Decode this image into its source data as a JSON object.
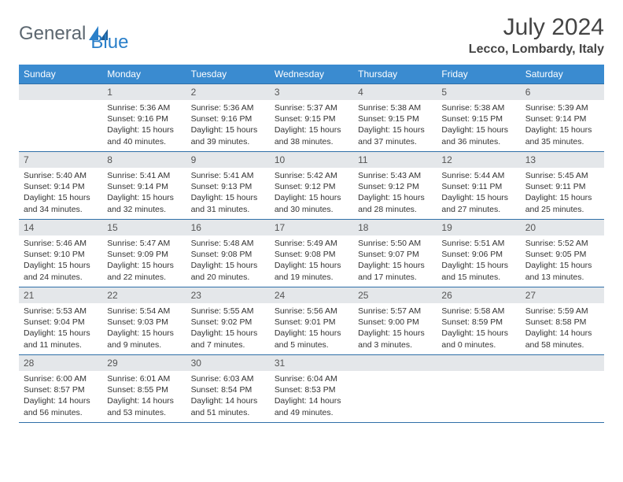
{
  "logo": {
    "text1": "General",
    "text2": "Blue"
  },
  "header": {
    "title": "July 2024",
    "location": "Lecco, Lombardy, Italy"
  },
  "colors": {
    "header_bg": "#3a8bd0",
    "header_text": "#ffffff",
    "daynum_bg": "#e4e7ea",
    "rule": "#2f6fa8",
    "logo_gray": "#5c6770",
    "logo_blue": "#2a7fc9",
    "body_text": "#333333"
  },
  "weekdays": [
    "Sunday",
    "Monday",
    "Tuesday",
    "Wednesday",
    "Thursday",
    "Friday",
    "Saturday"
  ],
  "weeks": [
    [
      {
        "n": "",
        "lines": []
      },
      {
        "n": "1",
        "lines": [
          "Sunrise: 5:36 AM",
          "Sunset: 9:16 PM",
          "Daylight: 15 hours and 40 minutes."
        ]
      },
      {
        "n": "2",
        "lines": [
          "Sunrise: 5:36 AM",
          "Sunset: 9:16 PM",
          "Daylight: 15 hours and 39 minutes."
        ]
      },
      {
        "n": "3",
        "lines": [
          "Sunrise: 5:37 AM",
          "Sunset: 9:15 PM",
          "Daylight: 15 hours and 38 minutes."
        ]
      },
      {
        "n": "4",
        "lines": [
          "Sunrise: 5:38 AM",
          "Sunset: 9:15 PM",
          "Daylight: 15 hours and 37 minutes."
        ]
      },
      {
        "n": "5",
        "lines": [
          "Sunrise: 5:38 AM",
          "Sunset: 9:15 PM",
          "Daylight: 15 hours and 36 minutes."
        ]
      },
      {
        "n": "6",
        "lines": [
          "Sunrise: 5:39 AM",
          "Sunset: 9:14 PM",
          "Daylight: 15 hours and 35 minutes."
        ]
      }
    ],
    [
      {
        "n": "7",
        "lines": [
          "Sunrise: 5:40 AM",
          "Sunset: 9:14 PM",
          "Daylight: 15 hours and 34 minutes."
        ]
      },
      {
        "n": "8",
        "lines": [
          "Sunrise: 5:41 AM",
          "Sunset: 9:14 PM",
          "Daylight: 15 hours and 32 minutes."
        ]
      },
      {
        "n": "9",
        "lines": [
          "Sunrise: 5:41 AM",
          "Sunset: 9:13 PM",
          "Daylight: 15 hours and 31 minutes."
        ]
      },
      {
        "n": "10",
        "lines": [
          "Sunrise: 5:42 AM",
          "Sunset: 9:12 PM",
          "Daylight: 15 hours and 30 minutes."
        ]
      },
      {
        "n": "11",
        "lines": [
          "Sunrise: 5:43 AM",
          "Sunset: 9:12 PM",
          "Daylight: 15 hours and 28 minutes."
        ]
      },
      {
        "n": "12",
        "lines": [
          "Sunrise: 5:44 AM",
          "Sunset: 9:11 PM",
          "Daylight: 15 hours and 27 minutes."
        ]
      },
      {
        "n": "13",
        "lines": [
          "Sunrise: 5:45 AM",
          "Sunset: 9:11 PM",
          "Daylight: 15 hours and 25 minutes."
        ]
      }
    ],
    [
      {
        "n": "14",
        "lines": [
          "Sunrise: 5:46 AM",
          "Sunset: 9:10 PM",
          "Daylight: 15 hours and 24 minutes."
        ]
      },
      {
        "n": "15",
        "lines": [
          "Sunrise: 5:47 AM",
          "Sunset: 9:09 PM",
          "Daylight: 15 hours and 22 minutes."
        ]
      },
      {
        "n": "16",
        "lines": [
          "Sunrise: 5:48 AM",
          "Sunset: 9:08 PM",
          "Daylight: 15 hours and 20 minutes."
        ]
      },
      {
        "n": "17",
        "lines": [
          "Sunrise: 5:49 AM",
          "Sunset: 9:08 PM",
          "Daylight: 15 hours and 19 minutes."
        ]
      },
      {
        "n": "18",
        "lines": [
          "Sunrise: 5:50 AM",
          "Sunset: 9:07 PM",
          "Daylight: 15 hours and 17 minutes."
        ]
      },
      {
        "n": "19",
        "lines": [
          "Sunrise: 5:51 AM",
          "Sunset: 9:06 PM",
          "Daylight: 15 hours and 15 minutes."
        ]
      },
      {
        "n": "20",
        "lines": [
          "Sunrise: 5:52 AM",
          "Sunset: 9:05 PM",
          "Daylight: 15 hours and 13 minutes."
        ]
      }
    ],
    [
      {
        "n": "21",
        "lines": [
          "Sunrise: 5:53 AM",
          "Sunset: 9:04 PM",
          "Daylight: 15 hours and 11 minutes."
        ]
      },
      {
        "n": "22",
        "lines": [
          "Sunrise: 5:54 AM",
          "Sunset: 9:03 PM",
          "Daylight: 15 hours and 9 minutes."
        ]
      },
      {
        "n": "23",
        "lines": [
          "Sunrise: 5:55 AM",
          "Sunset: 9:02 PM",
          "Daylight: 15 hours and 7 minutes."
        ]
      },
      {
        "n": "24",
        "lines": [
          "Sunrise: 5:56 AM",
          "Sunset: 9:01 PM",
          "Daylight: 15 hours and 5 minutes."
        ]
      },
      {
        "n": "25",
        "lines": [
          "Sunrise: 5:57 AM",
          "Sunset: 9:00 PM",
          "Daylight: 15 hours and 3 minutes."
        ]
      },
      {
        "n": "26",
        "lines": [
          "Sunrise: 5:58 AM",
          "Sunset: 8:59 PM",
          "Daylight: 15 hours and 0 minutes."
        ]
      },
      {
        "n": "27",
        "lines": [
          "Sunrise: 5:59 AM",
          "Sunset: 8:58 PM",
          "Daylight: 14 hours and 58 minutes."
        ]
      }
    ],
    [
      {
        "n": "28",
        "lines": [
          "Sunrise: 6:00 AM",
          "Sunset: 8:57 PM",
          "Daylight: 14 hours and 56 minutes."
        ]
      },
      {
        "n": "29",
        "lines": [
          "Sunrise: 6:01 AM",
          "Sunset: 8:55 PM",
          "Daylight: 14 hours and 53 minutes."
        ]
      },
      {
        "n": "30",
        "lines": [
          "Sunrise: 6:03 AM",
          "Sunset: 8:54 PM",
          "Daylight: 14 hours and 51 minutes."
        ]
      },
      {
        "n": "31",
        "lines": [
          "Sunrise: 6:04 AM",
          "Sunset: 8:53 PM",
          "Daylight: 14 hours and 49 minutes."
        ]
      },
      {
        "n": "",
        "lines": []
      },
      {
        "n": "",
        "lines": []
      },
      {
        "n": "",
        "lines": []
      }
    ]
  ]
}
